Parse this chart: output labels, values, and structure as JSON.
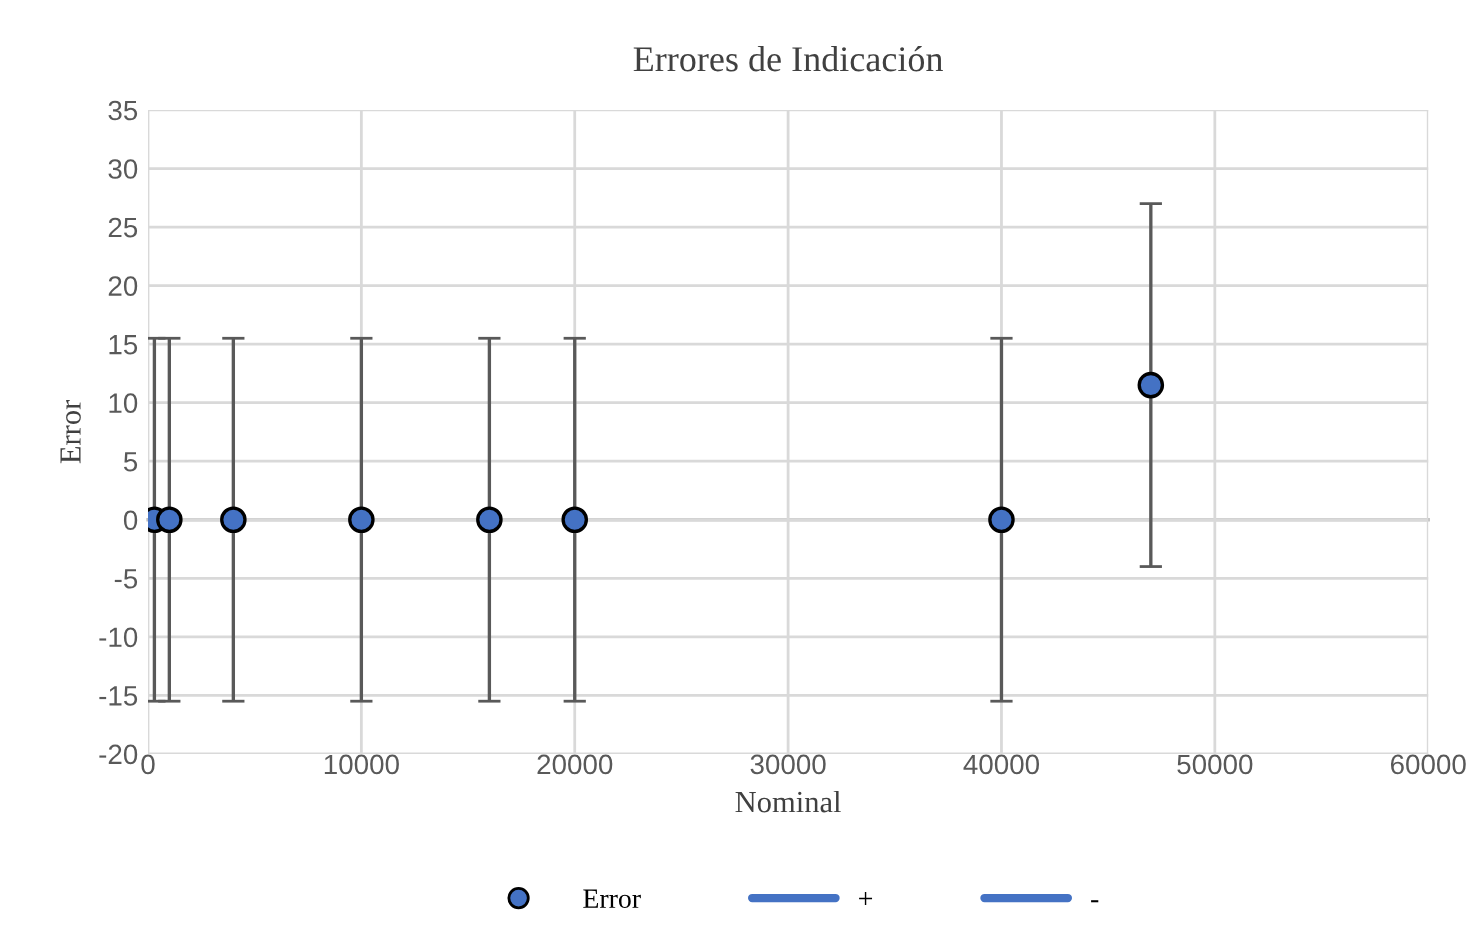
{
  "chart_data": {
    "type": "scatter",
    "title": "Errores de Indicación",
    "xlabel": "Nominal",
    "ylabel": "Error",
    "x": [
      300,
      1000,
      4000,
      10000,
      16000,
      20000,
      40000,
      47000
    ],
    "series": [
      {
        "name": "Error",
        "color": "#4472c4",
        "values": [
          0,
          0,
          0,
          0,
          0,
          0,
          0,
          11.5
        ],
        "errors": [
          15.5,
          15.5,
          15.5,
          15.5,
          15.5,
          15.5,
          15.5,
          15.5
        ],
        "marker": "circle"
      },
      {
        "name": "+",
        "type": "line",
        "color": "#4472c4",
        "values": [
          null,
          null,
          null,
          null,
          null,
          null,
          null,
          null
        ]
      },
      {
        "name": "-",
        "type": "line",
        "color": "#4472c4",
        "values": [
          null,
          null,
          null,
          null,
          null,
          null,
          null,
          null
        ]
      }
    ],
    "xlim": [
      0,
      60000
    ],
    "xticks": [
      0,
      10000,
      20000,
      30000,
      40000,
      50000,
      60000
    ],
    "ylim": [
      -20,
      35
    ],
    "yticks": [
      -20,
      -15,
      -10,
      -5,
      0,
      5,
      10,
      15,
      20,
      25,
      30,
      35
    ],
    "grid": true,
    "legend": "bottom"
  }
}
